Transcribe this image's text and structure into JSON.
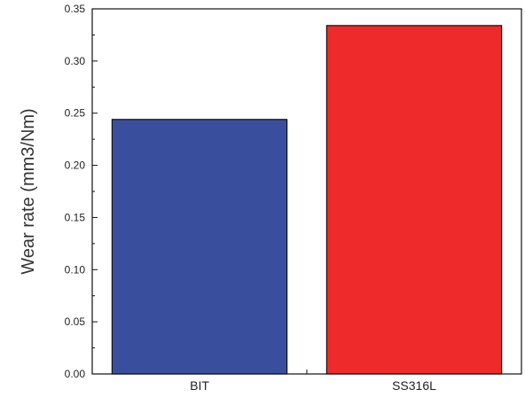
{
  "chart_data": {
    "type": "bar",
    "categories": [
      "BIT",
      "SS316L"
    ],
    "values": [
      0.244,
      0.334
    ],
    "colors": [
      "#394f9e",
      "#ee2a2a"
    ],
    "ylabel": "Wear rate (mm3/Nm)",
    "xlabel": "",
    "ylim": [
      0,
      0.35
    ],
    "yticks": [
      "0.00",
      "0.05",
      "0.10",
      "0.15",
      "0.20",
      "0.25",
      "0.30",
      "0.35"
    ],
    "grid": false,
    "legend": "none"
  }
}
